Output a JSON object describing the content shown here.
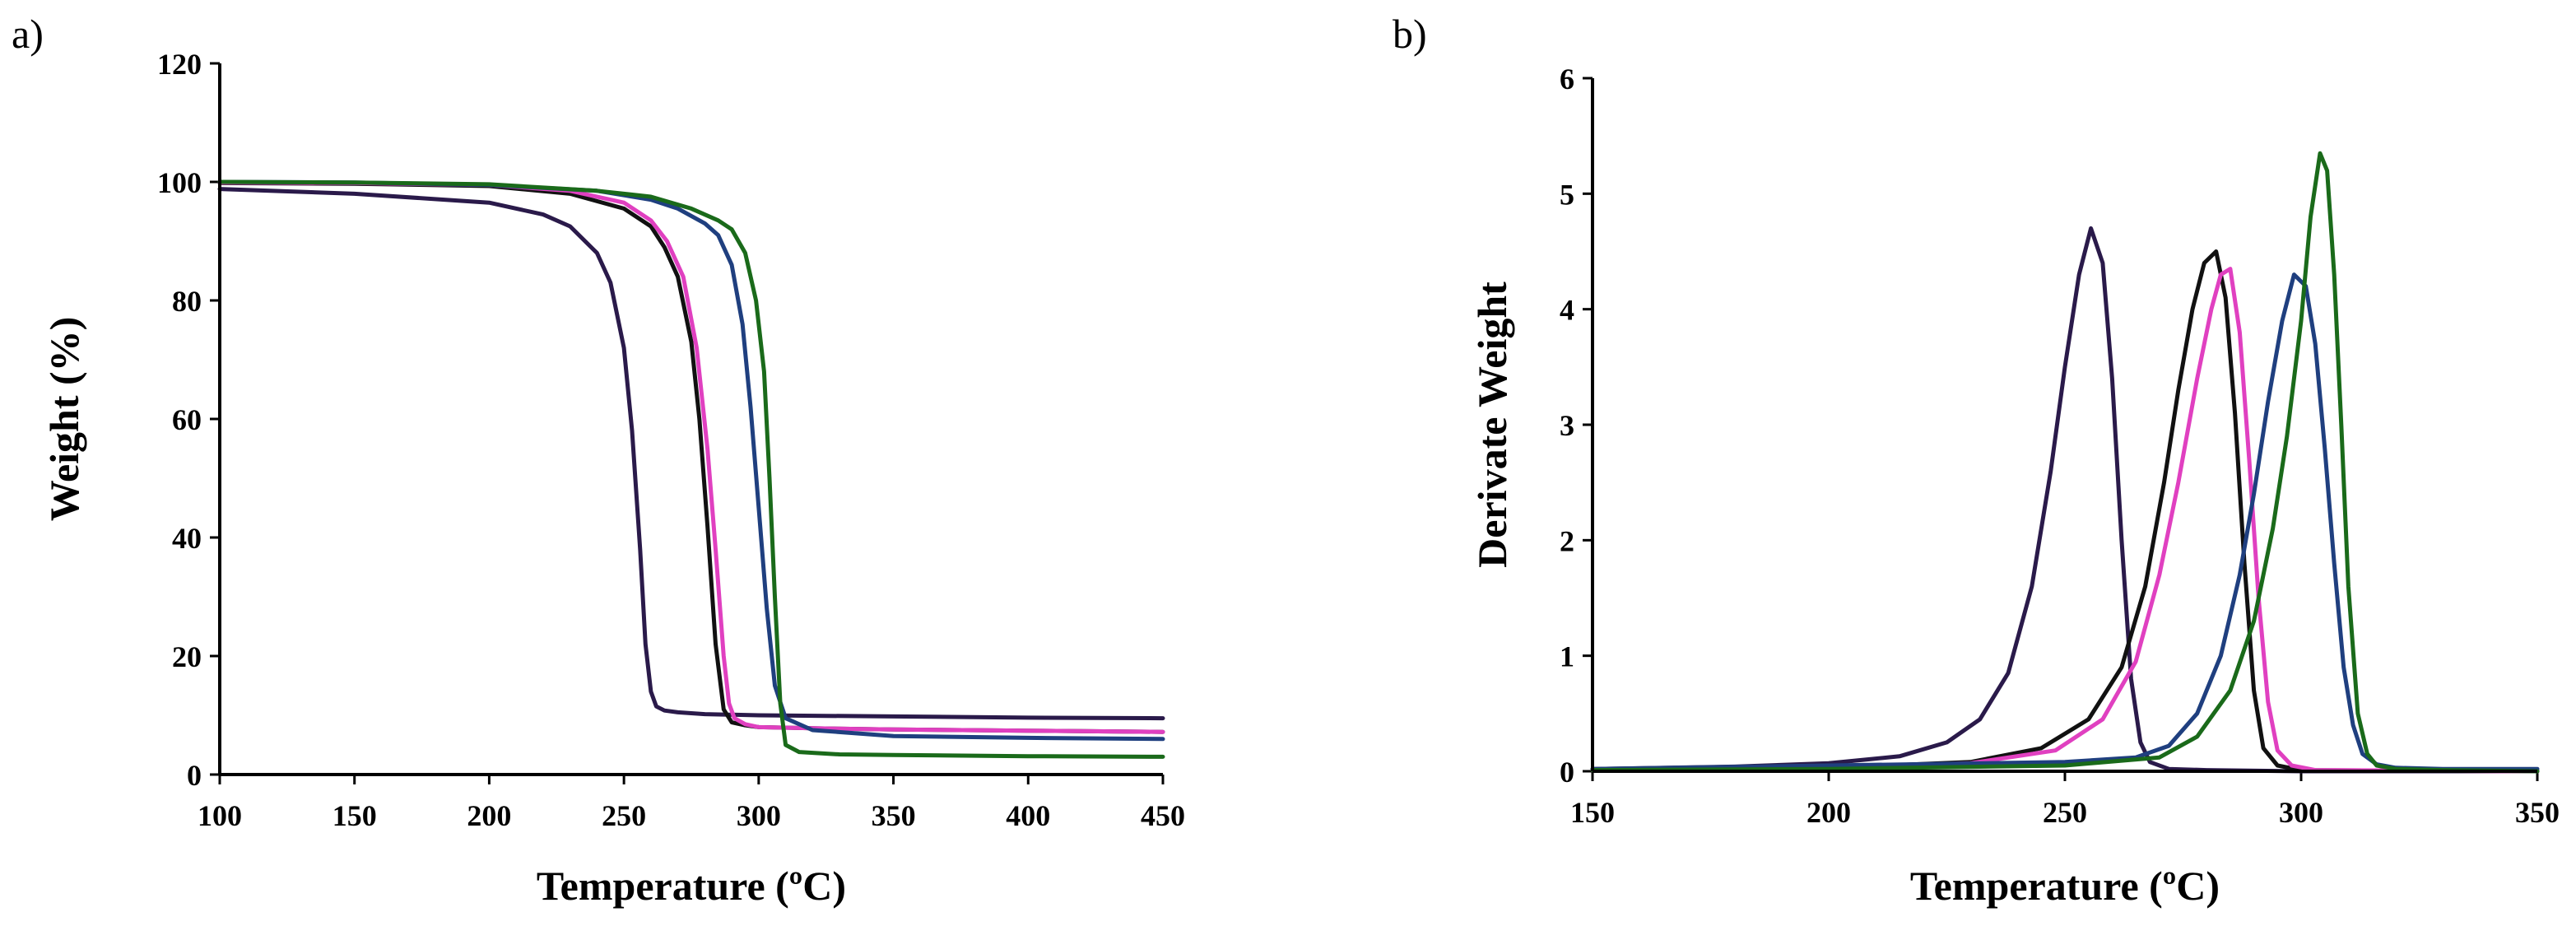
{
  "chart_data": [
    {
      "panel_label": "a)",
      "type": "line",
      "title": "",
      "xlabel": "Temperature (ºC)",
      "ylabel": "Weight (%)",
      "xlim": [
        100,
        450
      ],
      "ylim": [
        0,
        120
      ],
      "xticks": [
        100,
        150,
        200,
        250,
        300,
        350,
        400,
        450
      ],
      "yticks": [
        0,
        20,
        40,
        60,
        80,
        100,
        120
      ],
      "grid": false,
      "series": [
        {
          "name": "purple",
          "color": "#2a1a4a",
          "x": [
            100,
            150,
            200,
            220,
            230,
            240,
            245,
            250,
            253,
            256,
            258,
            260,
            262,
            265,
            270,
            280,
            300,
            350,
            400,
            450
          ],
          "y": [
            98.8,
            98,
            96.5,
            94.5,
            92.5,
            88,
            83,
            72,
            58,
            38,
            22,
            14,
            11.5,
            10.8,
            10.5,
            10.2,
            10,
            9.8,
            9.6,
            9.5
          ]
        },
        {
          "name": "black",
          "color": "#111111",
          "x": [
            100,
            150,
            200,
            230,
            250,
            260,
            265,
            270,
            275,
            278,
            281,
            284,
            287,
            290,
            295,
            300,
            320,
            350,
            400,
            450
          ],
          "y": [
            99.8,
            99.7,
            99.3,
            98,
            95.5,
            92.5,
            89,
            84,
            73,
            60,
            42,
            22,
            11,
            8.8,
            8.3,
            8,
            7.8,
            7.6,
            7.4,
            7.2
          ]
        },
        {
          "name": "magenta",
          "color": "#e040c0",
          "x": [
            100,
            150,
            200,
            230,
            250,
            260,
            266,
            272,
            277,
            281,
            284,
            287,
            289,
            291,
            295,
            300,
            320,
            350,
            400,
            450
          ],
          "y": [
            99.9,
            99.8,
            99.5,
            98.5,
            96.5,
            93.5,
            90,
            84,
            72,
            55,
            38,
            20,
            12,
            9.5,
            8.5,
            8,
            7.8,
            7.6,
            7.4,
            7.2
          ]
        },
        {
          "name": "blue",
          "color": "#1f3f7f",
          "x": [
            100,
            150,
            200,
            240,
            260,
            270,
            280,
            285,
            290,
            294,
            297,
            300,
            303,
            306,
            310,
            320,
            350,
            400,
            450
          ],
          "y": [
            100,
            99.9,
            99.5,
            98.5,
            97,
            95.5,
            93,
            91,
            86,
            76,
            62,
            45,
            28,
            15,
            9.5,
            7.5,
            6.5,
            6.2,
            6
          ]
        },
        {
          "name": "green",
          "color": "#1a6a1a",
          "x": [
            100,
            150,
            200,
            240,
            260,
            275,
            285,
            290,
            295,
            299,
            302,
            304,
            306,
            308,
            310,
            315,
            330,
            350,
            400,
            450
          ],
          "y": [
            100,
            99.9,
            99.6,
            98.5,
            97.5,
            95.5,
            93.5,
            92,
            88,
            80,
            68,
            50,
            30,
            12,
            5,
            3.8,
            3.4,
            3.3,
            3.1,
            3
          ]
        }
      ]
    },
    {
      "panel_label": "b)",
      "type": "line",
      "title": "",
      "xlabel": "Temperature (ºC)",
      "ylabel": "Derivate Weight",
      "xlim": [
        150,
        350
      ],
      "ylim": [
        0,
        6
      ],
      "xticks": [
        150,
        200,
        250,
        300,
        350
      ],
      "yticks": [
        0,
        1,
        2,
        3,
        4,
        5,
        6
      ],
      "grid": false,
      "series": [
        {
          "name": "purple",
          "color": "#2a1a4a",
          "x": [
            150,
            180,
            200,
            215,
            225,
            232,
            238,
            243,
            247,
            250,
            253,
            255.5,
            258,
            260,
            262,
            264,
            266,
            268,
            272,
            280,
            300,
            350
          ],
          "y": [
            0.02,
            0.04,
            0.07,
            0.13,
            0.25,
            0.45,
            0.85,
            1.6,
            2.6,
            3.5,
            4.3,
            4.7,
            4.4,
            3.4,
            2.0,
            0.8,
            0.25,
            0.08,
            0.02,
            0.01,
            0,
            0
          ]
        },
        {
          "name": "black",
          "color": "#111111",
          "x": [
            150,
            200,
            230,
            245,
            255,
            262,
            267,
            271,
            274,
            277,
            279.5,
            282,
            284,
            286,
            288,
            290,
            292,
            295,
            300,
            350
          ],
          "y": [
            0.01,
            0.03,
            0.08,
            0.2,
            0.45,
            0.9,
            1.6,
            2.5,
            3.3,
            4.0,
            4.4,
            4.5,
            4.1,
            3.1,
            1.8,
            0.7,
            0.2,
            0.05,
            0.01,
            0
          ]
        },
        {
          "name": "magenta",
          "color": "#e040c0",
          "x": [
            150,
            200,
            230,
            248,
            258,
            265,
            270,
            274,
            278,
            281,
            283,
            285,
            287,
            289,
            291,
            293,
            295,
            298,
            303,
            350
          ],
          "y": [
            0.01,
            0.03,
            0.07,
            0.18,
            0.45,
            0.95,
            1.7,
            2.5,
            3.4,
            4.0,
            4.3,
            4.35,
            3.8,
            2.7,
            1.5,
            0.6,
            0.18,
            0.05,
            0.01,
            0
          ]
        },
        {
          "name": "blue",
          "color": "#1f3f7f",
          "x": [
            150,
            200,
            250,
            265,
            272,
            278,
            283,
            287,
            290,
            293,
            296,
            298.5,
            301,
            303,
            305,
            307,
            309,
            311,
            313,
            316,
            320,
            330,
            350
          ],
          "y": [
            0.02,
            0.05,
            0.08,
            0.12,
            0.22,
            0.5,
            1.0,
            1.7,
            2.4,
            3.2,
            3.9,
            4.3,
            4.2,
            3.7,
            2.8,
            1.8,
            0.9,
            0.4,
            0.15,
            0.06,
            0.03,
            0.02,
            0.02
          ]
        },
        {
          "name": "green",
          "color": "#1a6a1a",
          "x": [
            150,
            200,
            250,
            270,
            278,
            285,
            290,
            294,
            297,
            300,
            302,
            304,
            305.5,
            307,
            308.5,
            310,
            312,
            314,
            316,
            320,
            330,
            350
          ],
          "y": [
            0.01,
            0.02,
            0.05,
            0.12,
            0.3,
            0.7,
            1.3,
            2.1,
            2.9,
            3.9,
            4.8,
            5.35,
            5.2,
            4.3,
            3.0,
            1.6,
            0.5,
            0.15,
            0.05,
            0.02,
            0.01,
            0
          ]
        }
      ]
    }
  ]
}
